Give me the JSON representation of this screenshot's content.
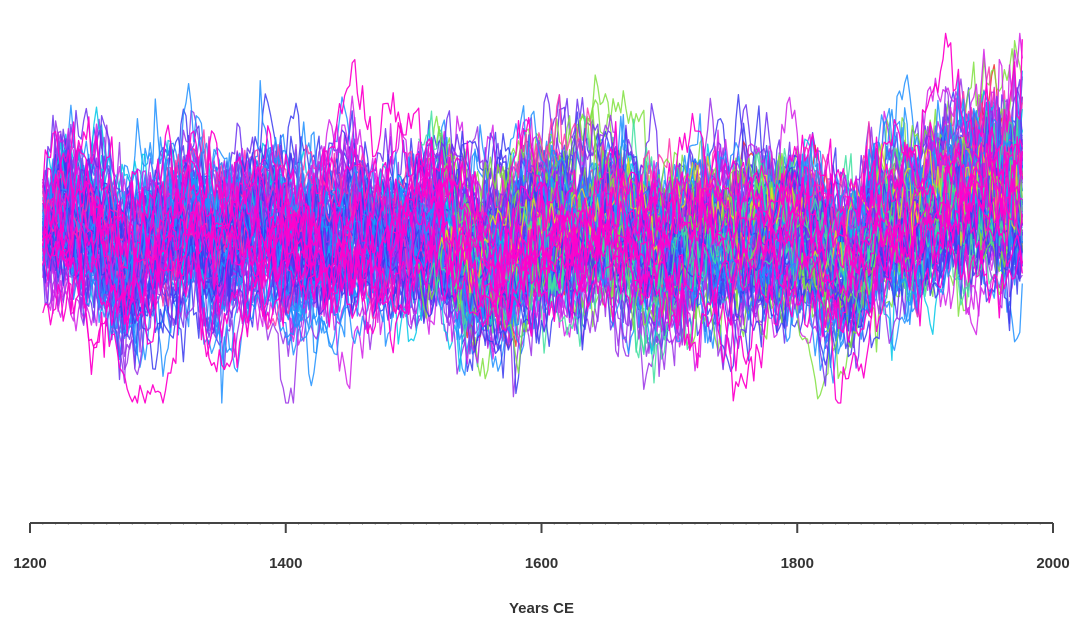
{
  "chart_data": {
    "type": "line",
    "title": "",
    "xlabel": "Years CE",
    "ylabel": "",
    "xlim": [
      1200,
      2000
    ],
    "ylim": [
      -3.2,
      3.2
    ],
    "x_ticks": [
      1200,
      1400,
      1600,
      1800,
      2000
    ],
    "x_tick_labels": [
      "1200",
      "1400",
      "1600",
      "1800",
      "2000"
    ],
    "x_start": 1210,
    "x_end": 1977,
    "grid": false,
    "legend": "none",
    "palette": [
      "#1e90ff",
      "#3a3af0",
      "#6a2ff0",
      "#9a30e8",
      "#d21ee6",
      "#ff00cc",
      "#00c8e8",
      "#40e0a0",
      "#80e040",
      "#e8e020",
      "#f03030",
      "#ff33aa"
    ],
    "series_count": 110,
    "series_stats": {
      "spread_early": 1.25,
      "spread_late": 1.45,
      "notable_dips": [
        {
          "x": 1275,
          "value": -2.25
        },
        {
          "x": 1345,
          "value": -2.0
        },
        {
          "x": 1465,
          "value": -1.85
        },
        {
          "x": 1612,
          "value": -2.1
        },
        {
          "x": 1845,
          "value": -2.4
        },
        {
          "x": 1935,
          "value": -1.9
        }
      ],
      "notable_peaks": [
        {
          "x": 1225,
          "value": 1.95
        },
        {
          "x": 1330,
          "value": 1.95
        },
        {
          "x": 1420,
          "value": 1.85
        },
        {
          "x": 1520,
          "value": 1.85
        },
        {
          "x": 1615,
          "value": 1.8
        },
        {
          "x": 1975,
          "value": 2.9
        }
      ]
    }
  }
}
